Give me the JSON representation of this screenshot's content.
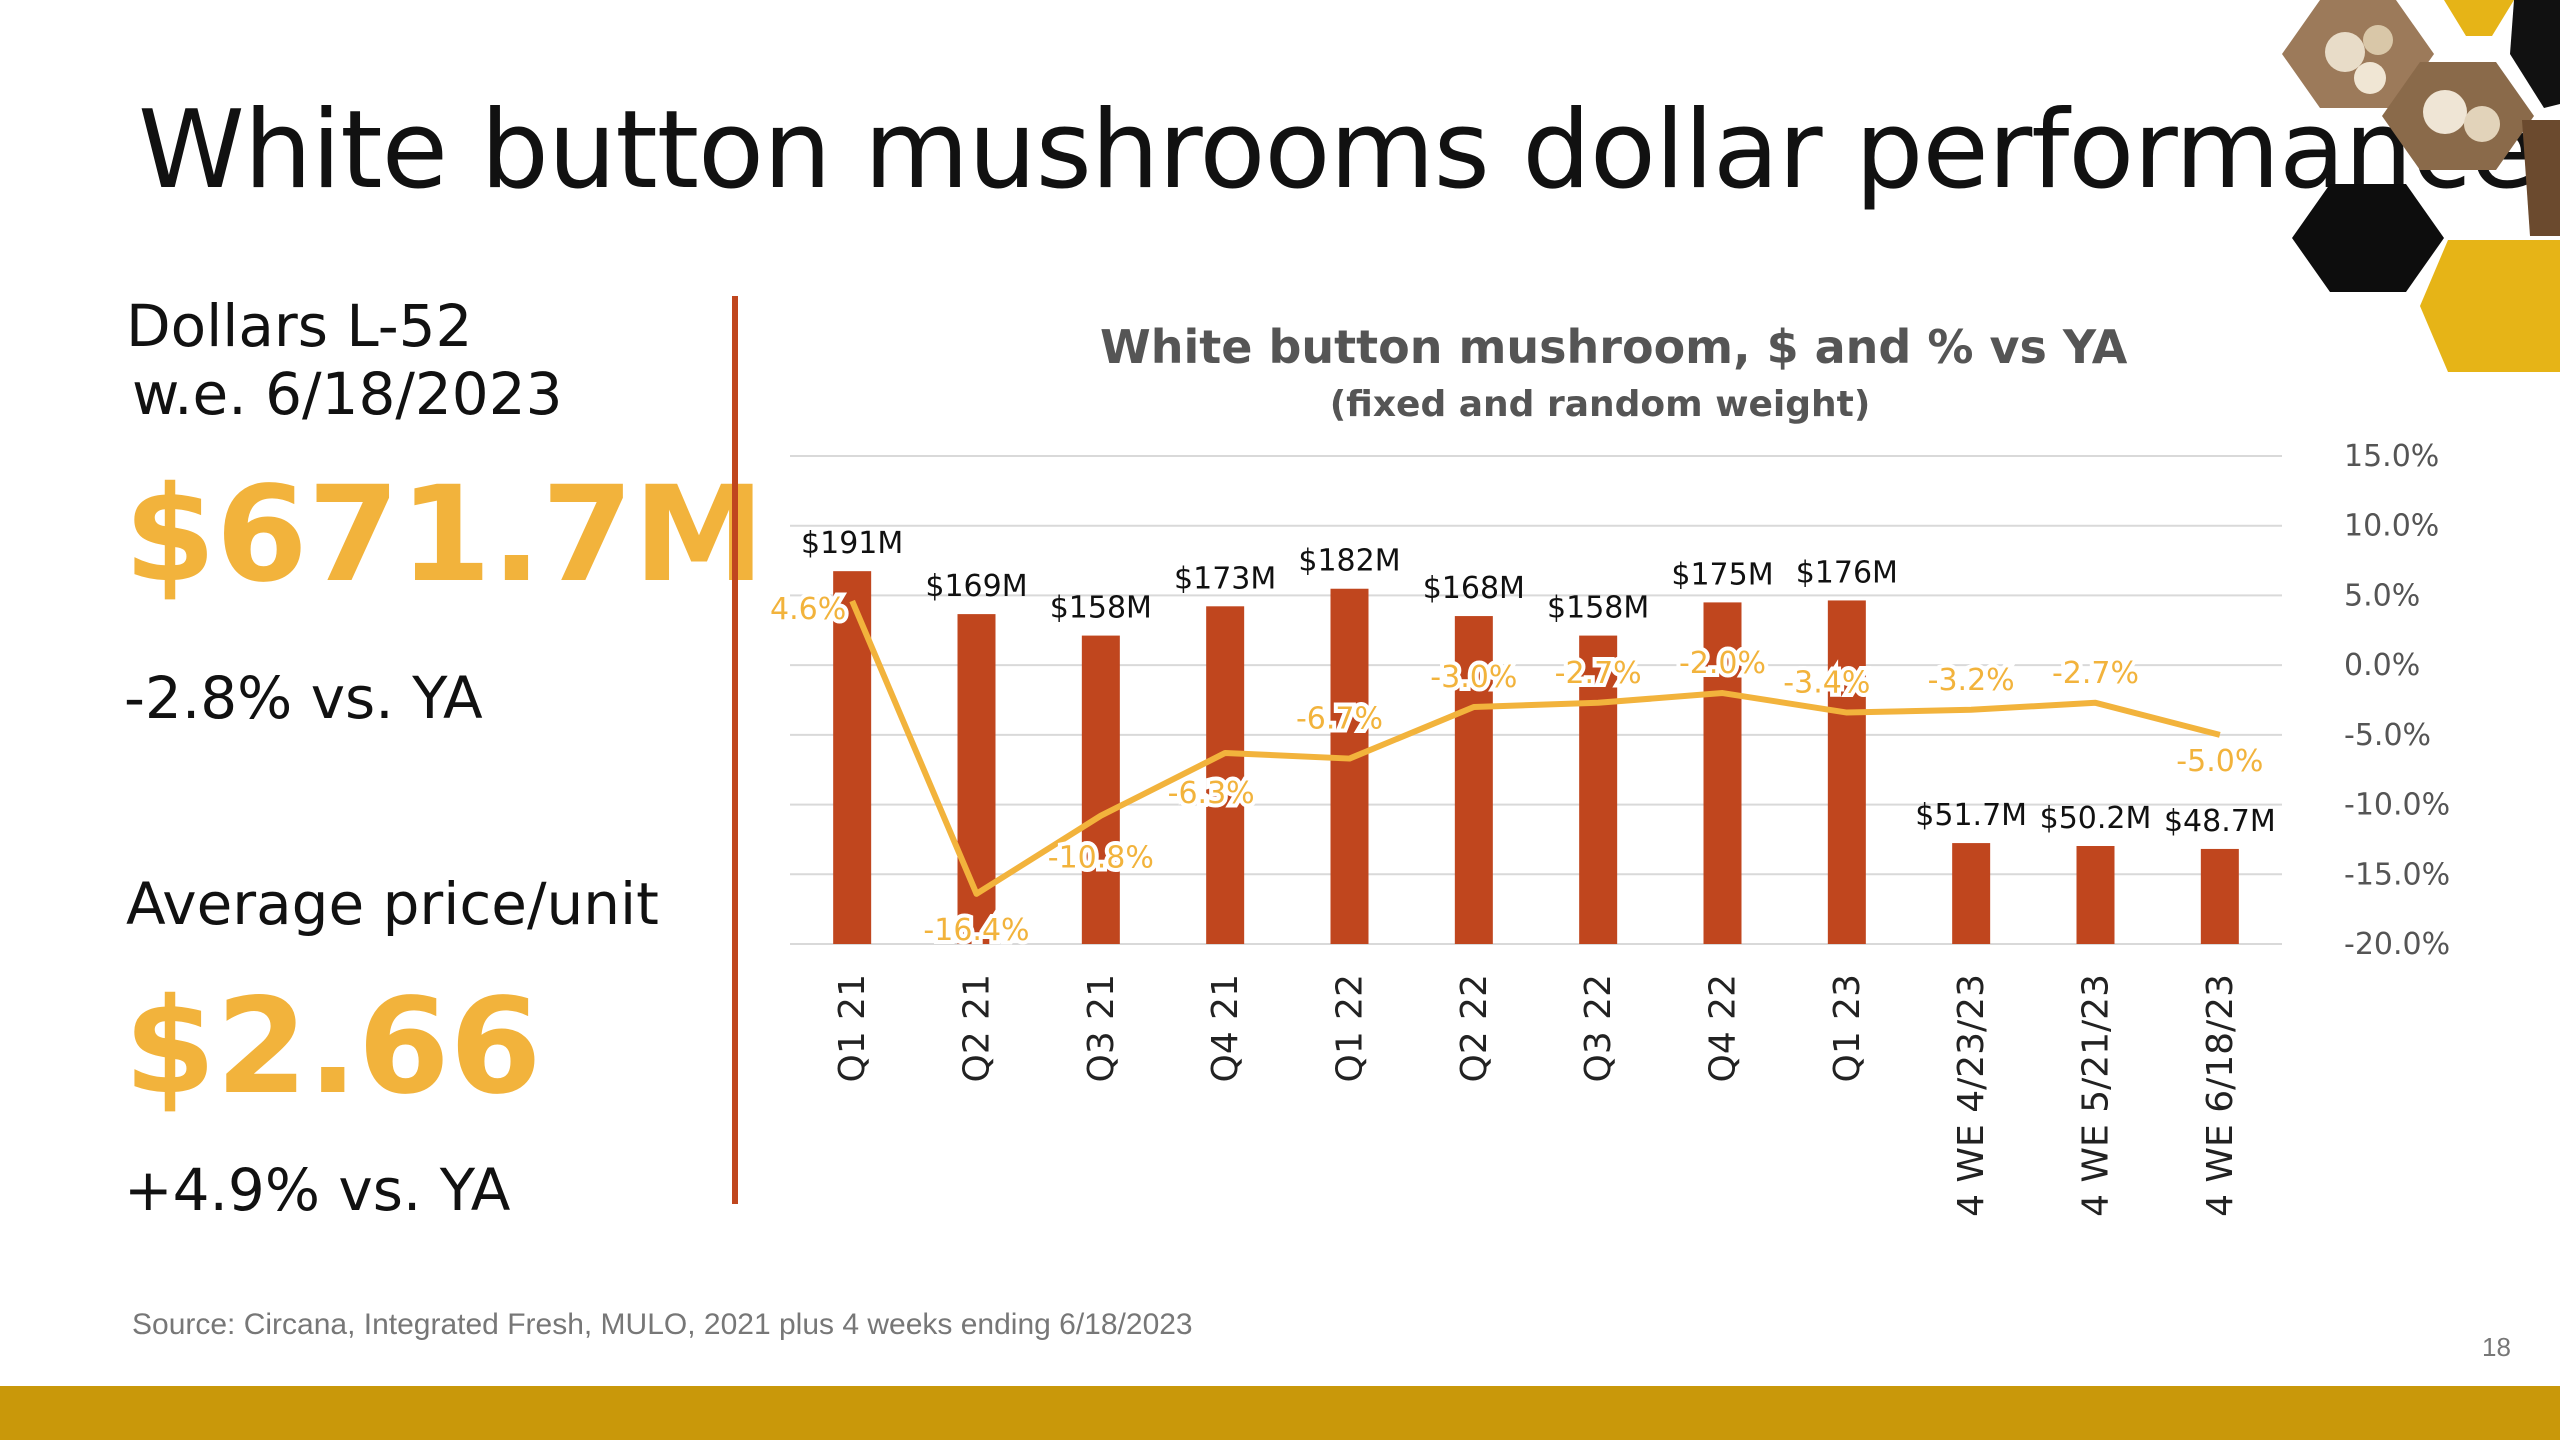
{
  "slide": {
    "title": "White button mushrooms dollar performance",
    "source": "Source: Circana, Integrated Fresh, MULO, 2021 plus 4 weeks ending 6/18/2023",
    "page_number": "18"
  },
  "kpis": {
    "dollars_label_1": "Dollars L-52",
    "dollars_label_2": "w.e. 6/18/2023",
    "dollars_value": "$671.7M",
    "dollars_change": "-2.8% vs. YA",
    "price_label": "Average price/unit",
    "price_value": "$2.66",
    "price_change": "+4.9% vs. YA"
  },
  "colors": {
    "bar": "#C0461E",
    "line": "#F2B33C",
    "accent_gold": "#C9980A",
    "kpi_value": "#F2B33C"
  },
  "chart_data": {
    "type": "bar",
    "title": "White button mushroom, $ and % vs YA",
    "subtitle": "(fixed and random weight)",
    "categories": [
      "Q1 21",
      "Q2 21",
      "Q3 21",
      "Q4 21",
      "Q1 22",
      "Q2 22",
      "Q3 22",
      "Q4 22",
      "Q1 23",
      "4 WE 4/23/23",
      "4 WE 5/21/23",
      "4 WE 6/18/23"
    ],
    "series": [
      {
        "type": "bar",
        "axis": "primary",
        "values": [
          191,
          169,
          158,
          173,
          182,
          168,
          158,
          175,
          176,
          51.7,
          50.2,
          48.7
        ],
        "labels": [
          "$191M",
          "$169M",
          "$158M",
          "$173M",
          "$182M",
          "$168M",
          "$158M",
          "$175M",
          "$176M",
          "$51.7M",
          "$50.2M",
          "$48.7M"
        ]
      },
      {
        "type": "line",
        "axis": "secondary",
        "values": [
          4.6,
          -16.4,
          -10.8,
          -6.3,
          -6.7,
          -3.0,
          -2.7,
          -2.0,
          -3.4,
          -3.2,
          -2.7,
          -5.0
        ],
        "labels": [
          "4.6%",
          "-16.4%",
          "-10.8%",
          "-6.3%",
          "-6.7%",
          "-3.0%",
          "-2.7%",
          "-2.0%",
          "-3.4%",
          "-3.2%",
          "-2.7%",
          "-5.0%"
        ]
      }
    ],
    "primary_axis": {
      "ylim": [
        0,
        250
      ],
      "tick_labels_visible": false
    },
    "secondary_axis": {
      "ylim": [
        -20,
        15
      ],
      "ticks": [
        15,
        10,
        5,
        0,
        -5,
        -10,
        -15,
        -20
      ],
      "tick_labels": [
        "15.0%",
        "10.0%",
        "5.0%",
        "0.0%",
        "-5.0%",
        "-10.0%",
        "-15.0%",
        "-20.0%"
      ]
    },
    "grid": true,
    "legend": "none"
  }
}
